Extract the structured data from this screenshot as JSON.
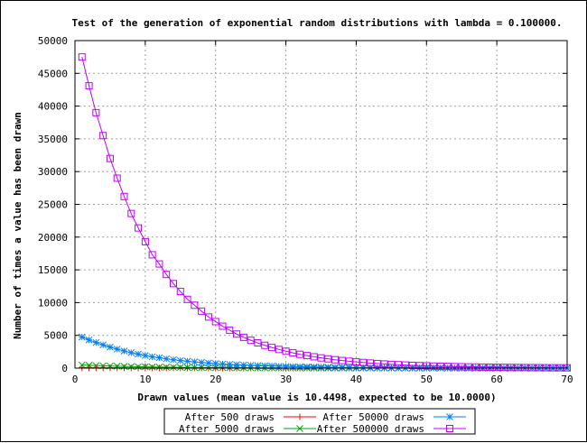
{
  "chart_data": {
    "type": "line",
    "title": "Test of the generation of exponential random distributions with lambda = 0.100000.",
    "xlabel": "Drawn values (mean value is 10.4498, expected to be 10.0000)",
    "ylabel": "Number of times a value has been drawn",
    "xlim": [
      0,
      70
    ],
    "ylim": [
      0,
      50000
    ],
    "xticks": [
      0,
      10,
      20,
      30,
      40,
      50,
      60,
      70
    ],
    "yticks": [
      0,
      5000,
      10000,
      15000,
      20000,
      25000,
      30000,
      35000,
      40000,
      45000,
      50000
    ],
    "grid": true,
    "legend_position": "bottom",
    "x": [
      1,
      2,
      3,
      4,
      5,
      6,
      7,
      8,
      9,
      10,
      11,
      12,
      13,
      14,
      15,
      16,
      17,
      18,
      19,
      20,
      21,
      22,
      23,
      24,
      25,
      26,
      27,
      28,
      29,
      30,
      31,
      32,
      33,
      34,
      35,
      36,
      37,
      38,
      39,
      40,
      41,
      42,
      43,
      44,
      45,
      46,
      47,
      48,
      49,
      50,
      51,
      52,
      53,
      54,
      55,
      56,
      57,
      58,
      59,
      60,
      61,
      62,
      63,
      64,
      65,
      66,
      67,
      68,
      69,
      70
    ],
    "series": [
      {
        "name": "After 500 draws",
        "color": "#ff0000",
        "marker": "plus",
        "values": [
          47,
          43,
          39,
          35,
          32,
          29,
          26,
          23,
          21,
          19,
          17,
          16,
          14,
          13,
          11,
          10,
          9,
          9,
          8,
          7,
          6,
          6,
          5,
          5,
          4,
          4,
          3,
          3,
          3,
          3,
          2,
          2,
          2,
          2,
          2,
          1,
          1,
          1,
          1,
          1,
          1,
          1,
          1,
          1,
          1,
          1,
          1,
          1,
          0,
          0,
          0,
          0,
          0,
          0,
          0,
          0,
          0,
          0,
          0,
          0,
          0,
          0,
          0,
          0,
          0,
          0,
          0,
          0,
          0,
          0
        ]
      },
      {
        "name": "After 5000 draws",
        "color": "#00a000",
        "marker": "cross",
        "values": [
          475,
          430,
          390,
          355,
          320,
          290,
          262,
          236,
          214,
          193,
          173,
          158,
          142,
          128,
          116,
          105,
          95,
          86,
          77,
          70,
          63,
          57,
          52,
          47,
          42,
          38,
          34,
          31,
          28,
          25,
          23,
          21,
          19,
          17,
          15,
          14,
          12,
          11,
          10,
          9,
          8,
          8,
          7,
          6,
          6,
          5,
          5,
          4,
          4,
          3,
          3,
          3,
          3,
          2,
          2,
          2,
          2,
          2,
          1,
          1,
          1,
          1,
          1,
          1,
          1,
          1,
          1,
          1,
          0,
          0
        ]
      },
      {
        "name": "After 50000 draws",
        "color": "#0080ff",
        "marker": "star",
        "values": [
          4750,
          4300,
          3900,
          3550,
          3200,
          2900,
          2620,
          2360,
          2140,
          1930,
          1730,
          1580,
          1420,
          1280,
          1160,
          1050,
          950,
          860,
          770,
          700,
          630,
          570,
          520,
          470,
          420,
          380,
          340,
          310,
          280,
          250,
          230,
          210,
          190,
          170,
          150,
          140,
          120,
          110,
          100,
          90,
          80,
          75,
          68,
          61,
          55,
          50,
          45,
          40,
          36,
          33,
          30,
          27,
          24,
          22,
          20,
          18,
          16,
          15,
          13,
          12,
          11,
          10,
          9,
          8,
          7,
          7,
          6,
          5,
          5,
          4
        ]
      },
      {
        "name": "After 500000 draws",
        "color": "#c000ff",
        "marker": "square",
        "values": [
          47500,
          43100,
          39000,
          35500,
          32000,
          29000,
          26200,
          23600,
          21400,
          19300,
          17300,
          15900,
          14300,
          12900,
          11700,
          10500,
          9600,
          8700,
          7800,
          7100,
          6400,
          5800,
          5200,
          4700,
          4250,
          3850,
          3480,
          3150,
          2850,
          2580,
          2330,
          2110,
          1910,
          1730,
          1560,
          1410,
          1280,
          1160,
          1050,
          950,
          860,
          780,
          700,
          630,
          570,
          520,
          470,
          420,
          380,
          345,
          310,
          282,
          255,
          230,
          208,
          188,
          170,
          154,
          140,
          126,
          114,
          103,
          93,
          84,
          76,
          69,
          62,
          56,
          51,
          46
        ]
      }
    ]
  }
}
